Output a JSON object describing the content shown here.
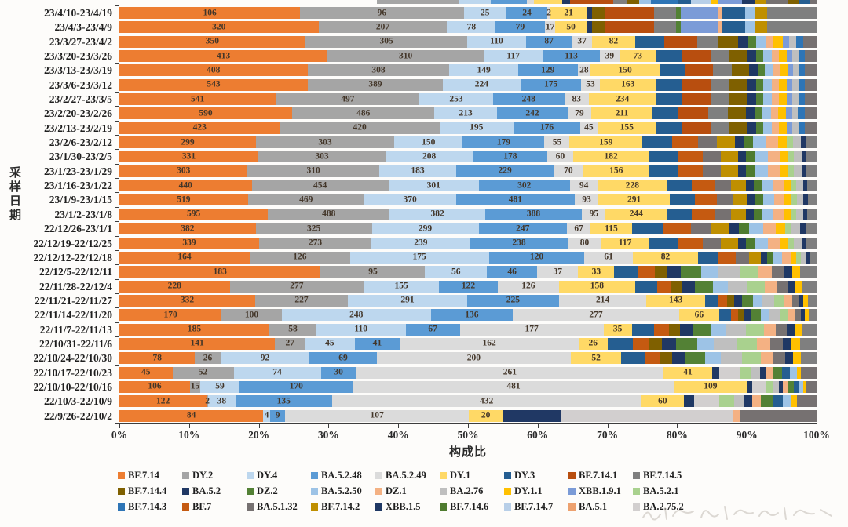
{
  "chart_data": {
    "type": "bar",
    "subtype": "horizontal-100pct-stacked",
    "title": "",
    "xlabel": "构成比",
    "ylabel": "采样日期",
    "x_ticks": [
      "0%",
      "10%",
      "20%",
      "30%",
      "40%",
      "50%",
      "60%",
      "70%",
      "80%",
      "90%",
      "100%"
    ],
    "xlim": [
      0,
      100
    ],
    "grid": false,
    "legend_position": "bottom",
    "labeled_series": [
      "BF.7.14",
      "DY.2",
      "DY.4",
      "BA.5.2.48",
      "BA.5.2.49",
      "DY.1"
    ],
    "palette": {
      "BF.7.14": "#ED7D31",
      "DY.2": "#A5A5A5",
      "DY.4": "#BDD7EE",
      "BA.5.2.48": "#5B9BD5",
      "BA.5.2.49": "#DBDBDB",
      "DY.1": "#FFD966",
      "DY.3": "#255E91",
      "BF.7.14.1": "#B84E0F",
      "BF.7.14.5": "#7F7F7F",
      "BF.7.14.4": "#7F6000",
      "BA.5.2": "#203864",
      "DZ.2": "#538135",
      "BA.5.2.50": "#9DC3E6",
      "DZ.1": "#F4B183",
      "BA.2.76": "#BFBFBF",
      "DY.1.1": "#FFC000",
      "XBB.1.9.1": "#7B9BD7",
      "BA.5.2.1": "#A9D18E",
      "BF.7.14.3": "#2E75B6",
      "BF.7": "#C55A11",
      "BA.5.1.32": "#767171",
      "BF.7.14.2": "#BF8F00",
      "XBB.1.5": "#1F3864",
      "BF.7.14.6": "#4E7B2F",
      "BF.7.14.7": "#B8CFE8",
      "BA.5.1": "#EDA16F",
      "BA.2.75.2": "#D2CFCF"
    },
    "legend_rows": [
      [
        "BF.7.14",
        "DY.2",
        "DY.4",
        "BA.5.2.48",
        "BA.5.2.49",
        "DY.1",
        "DY.3",
        "BF.7.14.1",
        "BF.7.14.5"
      ],
      [
        "BF.7.14.4",
        "BA.5.2",
        "DZ.2",
        "BA.5.2.50",
        "DZ.1",
        "BA.2.76",
        "DY.1.1",
        "XBB.1.9.1",
        "BA.5.2.1"
      ],
      [
        "BF.7.14.3",
        "BF.7",
        "BA.5.1.32",
        "BF.7.14.2",
        "XBB.1.5",
        "BF.7.14.6",
        "BF.7.14.7",
        "BA.5.1",
        "BA.2.75.2"
      ]
    ],
    "rows": [
      {
        "label": "23/4/10-23/4/19",
        "values": [
          106,
          96,
          25,
          24,
          2,
          21
        ],
        "others_estimated_pct": 0.33,
        "others_pattern": "A"
      },
      {
        "label": "23/4/3-23/4/9",
        "values": [
          320,
          207,
          78,
          79,
          17,
          50
        ],
        "others_estimated_pct": 0.33,
        "others_pattern": "A"
      },
      {
        "label": "23/3/27-23/4/2",
        "values": [
          350,
          305,
          110,
          87,
          37,
          82
        ],
        "others_estimated_pct": 0.26,
        "others_pattern": "B"
      },
      {
        "label": "23/3/20-23/3/26",
        "values": [
          413,
          310,
          117,
          113,
          39,
          73
        ],
        "others_estimated_pct": 0.23,
        "others_pattern": "B"
      },
      {
        "label": "23/3/13-23/3/19",
        "values": [
          408,
          308,
          149,
          129,
          28,
          150
        ],
        "others_estimated_pct": 0.225,
        "others_pattern": "B"
      },
      {
        "label": "23/3/6-23/3/12",
        "values": [
          543,
          389,
          224,
          175,
          53,
          163
        ],
        "others_estimated_pct": 0.23,
        "others_pattern": "B"
      },
      {
        "label": "23/2/27-23/3/5",
        "values": [
          541,
          497,
          253,
          248,
          83,
          234
        ],
        "others_estimated_pct": 0.23,
        "others_pattern": "B"
      },
      {
        "label": "23/2/20-23/2/26",
        "values": [
          590,
          486,
          213,
          242,
          79,
          211
        ],
        "others_estimated_pct": 0.235,
        "others_pattern": "B"
      },
      {
        "label": "23/2/13-23/2/19",
        "values": [
          423,
          420,
          195,
          176,
          45,
          155
        ],
        "others_estimated_pct": 0.23,
        "others_pattern": "B"
      },
      {
        "label": "23/2/6-23/2/12",
        "values": [
          299,
          303,
          150,
          179,
          55,
          159
        ],
        "others_estimated_pct": 0.25,
        "others_pattern": "C"
      },
      {
        "label": "23/1/30-23/2/5",
        "values": [
          331,
          303,
          208,
          178,
          60,
          182
        ],
        "others_estimated_pct": 0.24,
        "others_pattern": "C"
      },
      {
        "label": "23/1/23-23/1/29",
        "values": [
          303,
          310,
          183,
          229,
          70,
          156
        ],
        "others_estimated_pct": 0.24,
        "others_pattern": "C"
      },
      {
        "label": "23/1/16-23/1/22",
        "values": [
          440,
          454,
          301,
          302,
          94,
          228
        ],
        "others_estimated_pct": 0.215,
        "others_pattern": "C"
      },
      {
        "label": "23/1/9-23/1/15",
        "values": [
          519,
          469,
          370,
          481,
          93,
          291
        ],
        "others_estimated_pct": 0.21,
        "others_pattern": "C"
      },
      {
        "label": "23/1/2-23/1/8",
        "values": [
          595,
          488,
          382,
          388,
          95,
          244
        ],
        "others_estimated_pct": 0.215,
        "others_pattern": "C"
      },
      {
        "label": "22/12/26-23/1/1",
        "values": [
          382,
          325,
          299,
          247,
          67,
          115
        ],
        "others_estimated_pct": 0.265,
        "others_pattern": "C"
      },
      {
        "label": "22/12/19-22/12/25",
        "values": [
          339,
          273,
          239,
          238,
          80,
          117
        ],
        "others_estimated_pct": 0.24,
        "others_pattern": "C"
      },
      {
        "label": "22/12/12-22/12/18",
        "values": [
          164,
          126,
          175,
          120,
          61,
          82
        ],
        "others_estimated_pct": 0.17,
        "others_pattern": "C"
      },
      {
        "label": "22/12/5-22/12/11",
        "values": [
          183,
          95,
          56,
          46,
          37,
          33
        ],
        "others_estimated_pct": 0.29,
        "others_pattern": "D"
      },
      {
        "label": "22/11/28-22/12/4",
        "values": [
          228,
          277,
          155,
          122,
          126,
          158
        ],
        "others_estimated_pct": 0.26,
        "others_pattern": "D"
      },
      {
        "label": "22/11/21-22/11/27",
        "values": [
          332,
          227,
          291,
          225,
          214,
          143
        ],
        "others_estimated_pct": 0.16,
        "others_pattern": "D"
      },
      {
        "label": "22/11/14-22/11/20",
        "values": [
          170,
          100,
          248,
          136,
          277,
          66
        ],
        "others_estimated_pct": 0.14,
        "others_pattern": "D"
      },
      {
        "label": "22/11/7-22/11/13",
        "values": [
          185,
          58,
          110,
          67,
          177,
          35
        ],
        "others_estimated_pct": 0.265,
        "others_pattern": "D"
      },
      {
        "label": "22/10/31-22/11/6",
        "values": [
          141,
          27,
          45,
          41,
          162,
          26
        ],
        "others_estimated_pct": 0.3,
        "others_pattern": "D"
      },
      {
        "label": "22/10/24-22/10/30",
        "values": [
          78,
          26,
          92,
          69,
          200,
          52
        ],
        "others_estimated_pct": 0.28,
        "others_pattern": "D"
      },
      {
        "label": "22/10/17-22/10/23",
        "values": [
          45,
          52,
          74,
          30,
          261,
          41
        ],
        "others_estimated_pct": 0.15,
        "others_pattern": "E"
      },
      {
        "label": "22/10/10-22/10/16",
        "values": [
          106,
          15,
          59,
          170,
          481,
          109
        ],
        "others_estimated_pct": 0.1,
        "others_pattern": "E"
      },
      {
        "label": "22/10/3-22/10/9",
        "values": [
          122,
          2,
          38,
          135,
          432,
          60
        ],
        "others_estimated_pct": 0.19,
        "others_pattern": "E"
      },
      {
        "label": "22/9/26-22/10/2",
        "values": [
          84,
          0,
          4,
          9,
          107,
          20
        ],
        "others_estimated_pct": 0.45,
        "others_pattern": "F"
      }
    ],
    "others_patterns": {
      "A": [
        [
          "BA.5.2",
          0.8
        ],
        [
          "BF.7.14.4",
          1.8
        ],
        [
          "BF.7.14.1",
          6.5
        ],
        [
          "BF.7.14.5",
          3.0
        ],
        [
          "DZ.2",
          0.6
        ],
        [
          "XBB.1.9.1",
          5.0
        ],
        [
          "DZ.1",
          0.5
        ],
        [
          "DY.3",
          3.2
        ],
        [
          "BA.5.2.50",
          1.4
        ],
        [
          "BF.7.14.2",
          1.6
        ],
        [
          "BF.7.14.5",
          6.6
        ]
      ],
      "B": [
        [
          "DY.3",
          3.5
        ],
        [
          "BF.7.14.1",
          4.0
        ],
        [
          "BF.7.14.5",
          2.6
        ],
        [
          "BF.7.14.4",
          2.4
        ],
        [
          "XBB.1.5",
          1.2
        ],
        [
          "DZ.2",
          1.0
        ],
        [
          "BA.5.2.50",
          1.2
        ],
        [
          "DZ.1",
          0.9
        ],
        [
          "DY.1.1",
          1.1
        ],
        [
          "XBB.1.9.1",
          0.8
        ],
        [
          "BA.2.76",
          0.8
        ],
        [
          "BF.7.14.3",
          0.9
        ],
        [
          "BA.5.1.32",
          1.6
        ]
      ],
      "C": [
        [
          "DY.3",
          3.4
        ],
        [
          "BF.7",
          3.0
        ],
        [
          "BA.5.1.32",
          2.2
        ],
        [
          "BF.7.14.2",
          2.0
        ],
        [
          "XBB.1.5",
          1.0
        ],
        [
          "BF.7.14.6",
          1.1
        ],
        [
          "BA.5.2.50",
          1.5
        ],
        [
          "DZ.1",
          1.4
        ],
        [
          "DY.1.1",
          1.0
        ],
        [
          "BA.5.2.1",
          0.7
        ],
        [
          "BA.2.76",
          0.9
        ],
        [
          "BA.5.2",
          0.6
        ],
        [
          "BF.7.14.5",
          1.2
        ]
      ],
      "D": [
        [
          "DY.3",
          2.4
        ],
        [
          "BF.7",
          1.6
        ],
        [
          "BF.7.14.4",
          1.2
        ],
        [
          "BA.5.2",
          1.4
        ],
        [
          "DZ.2",
          2.0
        ],
        [
          "BA.5.2.50",
          1.6
        ],
        [
          "BA.2.76",
          2.2
        ],
        [
          "BA.5.2.1",
          1.9
        ],
        [
          "DZ.1",
          1.3
        ],
        [
          "BA.5.1.32",
          1.2
        ],
        [
          "XBB.1.5",
          0.8
        ],
        [
          "DY.1.1",
          0.8
        ],
        [
          "BF.7.14.5",
          1.6
        ]
      ],
      "E": [
        [
          "XBB.1.5",
          1.2
        ],
        [
          "BA.2.75.2",
          3.2
        ],
        [
          "BA.5.2.1",
          1.8
        ],
        [
          "BA.2.76",
          1.3
        ],
        [
          "BA.5.2",
          0.9
        ],
        [
          "DZ.1",
          1.1
        ],
        [
          "DZ.2",
          1.5
        ],
        [
          "DY.3",
          1.2
        ],
        [
          "BA.5.2.50",
          1.1
        ],
        [
          "DY.1.1",
          0.7
        ],
        [
          "BA.5.1.32",
          2.4
        ]
      ],
      "F": [
        [
          "BA.5.2",
          2.2
        ],
        [
          "BA.2.75.2",
          6.6
        ],
        [
          "DZ.1",
          0.3
        ],
        [
          "BA.5.1.32",
          2.9
        ]
      ]
    },
    "top_edge_partial_bar": [
      [
        "DY.2",
        480,
        585
      ],
      [
        "DY.4",
        585,
        625
      ],
      [
        "BA.5.2.48",
        625,
        671
      ],
      [
        "BA.5.2.49",
        671,
        680
      ],
      [
        "DY.1",
        680,
        716
      ],
      [
        "BA.5.2",
        716,
        726
      ],
      [
        "BF.7.14.1",
        726,
        781
      ],
      [
        "BF.7.14.5",
        781,
        799
      ],
      [
        "BF.7.14.4",
        799,
        814
      ],
      [
        "BA.5.2.50",
        814,
        829
      ],
      [
        "BF.7.14.3",
        829,
        863
      ],
      [
        "DY.3",
        863,
        880
      ],
      [
        "BF.7.14.7",
        880,
        905
      ],
      [
        "DY.1.1",
        905,
        915
      ],
      [
        "XBB.1.9.1",
        915,
        945
      ],
      [
        "XBB.1.5",
        945,
        962
      ],
      [
        "BF.7.14.2",
        962,
        975
      ],
      [
        "BA.5.1.32",
        975,
        1003
      ],
      [
        "BF.7.14.4",
        1003,
        1018
      ],
      [
        "DY.3",
        1018,
        1032
      ],
      [
        "BA.5.1.32",
        1032,
        1040
      ]
    ]
  }
}
